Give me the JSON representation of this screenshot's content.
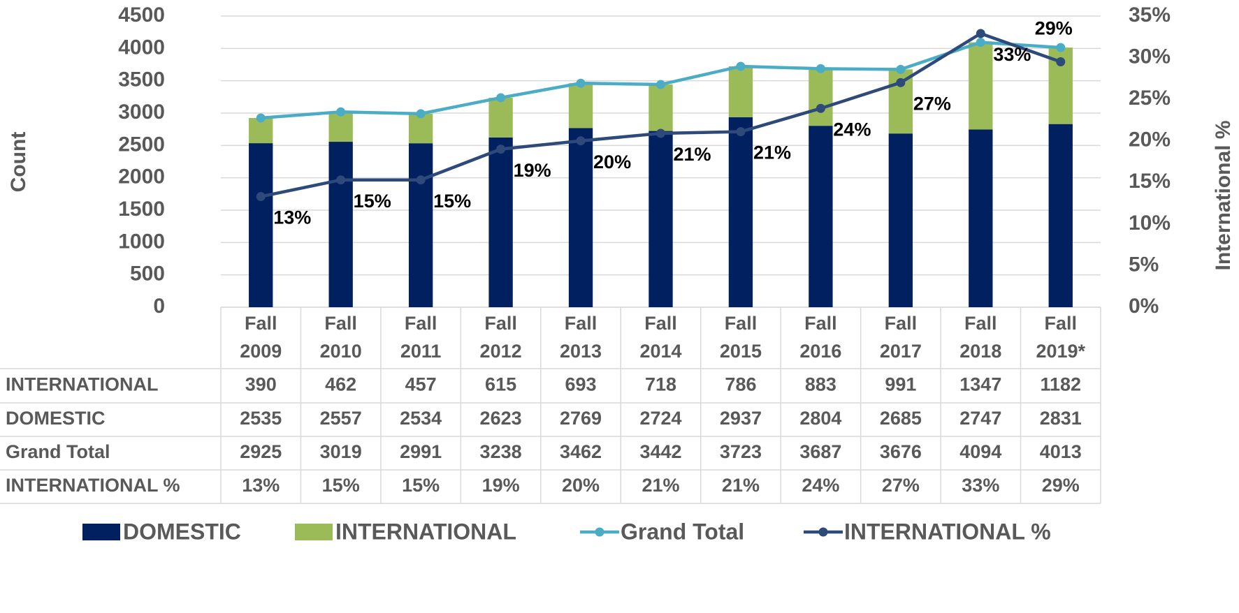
{
  "chart_data": {
    "type": "bar",
    "stacked": true,
    "axis_labels": {
      "y": "Count",
      "y2": "International %"
    },
    "categories": [
      "Fall 2009",
      "Fall 2010",
      "Fall 2011",
      "Fall 2012",
      "Fall 2013",
      "Fall 2014",
      "Fall 2015",
      "Fall 2016",
      "Fall 2017",
      "Fall 2018",
      "Fall 2019*"
    ],
    "series": [
      {
        "name": "DOMESTIC",
        "type": "bar",
        "color": "#002060",
        "values": [
          2535,
          2557,
          2534,
          2623,
          2769,
          2724,
          2937,
          2804,
          2685,
          2747,
          2831
        ]
      },
      {
        "name": "INTERNATIONAL",
        "type": "bar",
        "color": "#9bbb59",
        "values": [
          390,
          462,
          457,
          615,
          693,
          718,
          786,
          883,
          991,
          1347,
          1182
        ]
      },
      {
        "name": "Grand Total",
        "type": "line",
        "color": "#4bacc6",
        "values": [
          2925,
          3019,
          2991,
          3238,
          3462,
          3442,
          3723,
          3687,
          3676,
          4094,
          4013
        ]
      },
      {
        "name": "INTERNATIONAL %",
        "type": "line",
        "axis": "y2",
        "color": "#2e4a7a",
        "values": [
          13.3,
          15.3,
          15.3,
          19.0,
          20.0,
          20.9,
          21.1,
          23.9,
          27.0,
          32.9,
          29.5
        ],
        "value_labels": [
          "13%",
          "15%",
          "15%",
          "19%",
          "20%",
          "21%",
          "21%",
          "24%",
          "27%",
          "33%",
          "29%"
        ]
      }
    ],
    "table_rows": [
      1,
      0,
      2,
      3
    ],
    "ylim": [
      0,
      4500
    ],
    "yticks": [
      0,
      500,
      1000,
      1500,
      2000,
      2500,
      3000,
      3500,
      4000,
      4500
    ],
    "y2lim": [
      0,
      35
    ],
    "y2ticks": [
      {
        "value": 0,
        "label": "0%"
      },
      {
        "value": 5,
        "label": "5%"
      },
      {
        "value": 10,
        "label": "10%"
      },
      {
        "value": 15,
        "label": "15%"
      },
      {
        "value": 20,
        "label": "20%"
      },
      {
        "value": 25,
        "label": "25%"
      },
      {
        "value": 30,
        "label": "30%"
      },
      {
        "value": 35,
        "label": "35%"
      }
    ],
    "grid": true,
    "legend": "bottom"
  }
}
